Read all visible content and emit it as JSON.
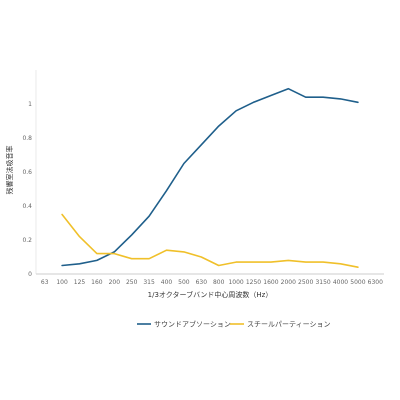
{
  "chart_data": {
    "type": "line",
    "title": "",
    "xlabel": "1/3オクターブバンド中心周波数（Hz）",
    "ylabel": "残響室法吸音率",
    "x": [
      "63",
      "100",
      "125",
      "160",
      "200",
      "250",
      "315",
      "400",
      "500",
      "630",
      "800",
      "1000",
      "1250",
      "1600",
      "2000",
      "2500",
      "3150",
      "4000",
      "5000",
      "6300"
    ],
    "ylim": [
      0,
      1.2
    ],
    "yticks": [
      "0",
      "0.2",
      "0.4",
      "0.6",
      "0.8",
      "1"
    ],
    "grid": false,
    "legend_position": "bottom",
    "series": [
      {
        "name": "サウンドアブソーション",
        "color": "#1f5f8b",
        "values": [
          null,
          0.05,
          0.06,
          0.08,
          0.13,
          0.23,
          0.34,
          0.49,
          0.65,
          0.76,
          0.87,
          0.96,
          1.01,
          1.05,
          1.09,
          1.04,
          1.04,
          1.03,
          1.01,
          null
        ]
      },
      {
        "name": "スチールパーティーション",
        "color": "#f0c02a",
        "values": [
          null,
          0.35,
          0.22,
          0.12,
          0.12,
          0.09,
          0.09,
          0.14,
          0.13,
          0.1,
          0.05,
          0.07,
          0.07,
          0.07,
          0.08,
          0.07,
          0.07,
          0.06,
          0.04,
          null
        ]
      }
    ]
  }
}
